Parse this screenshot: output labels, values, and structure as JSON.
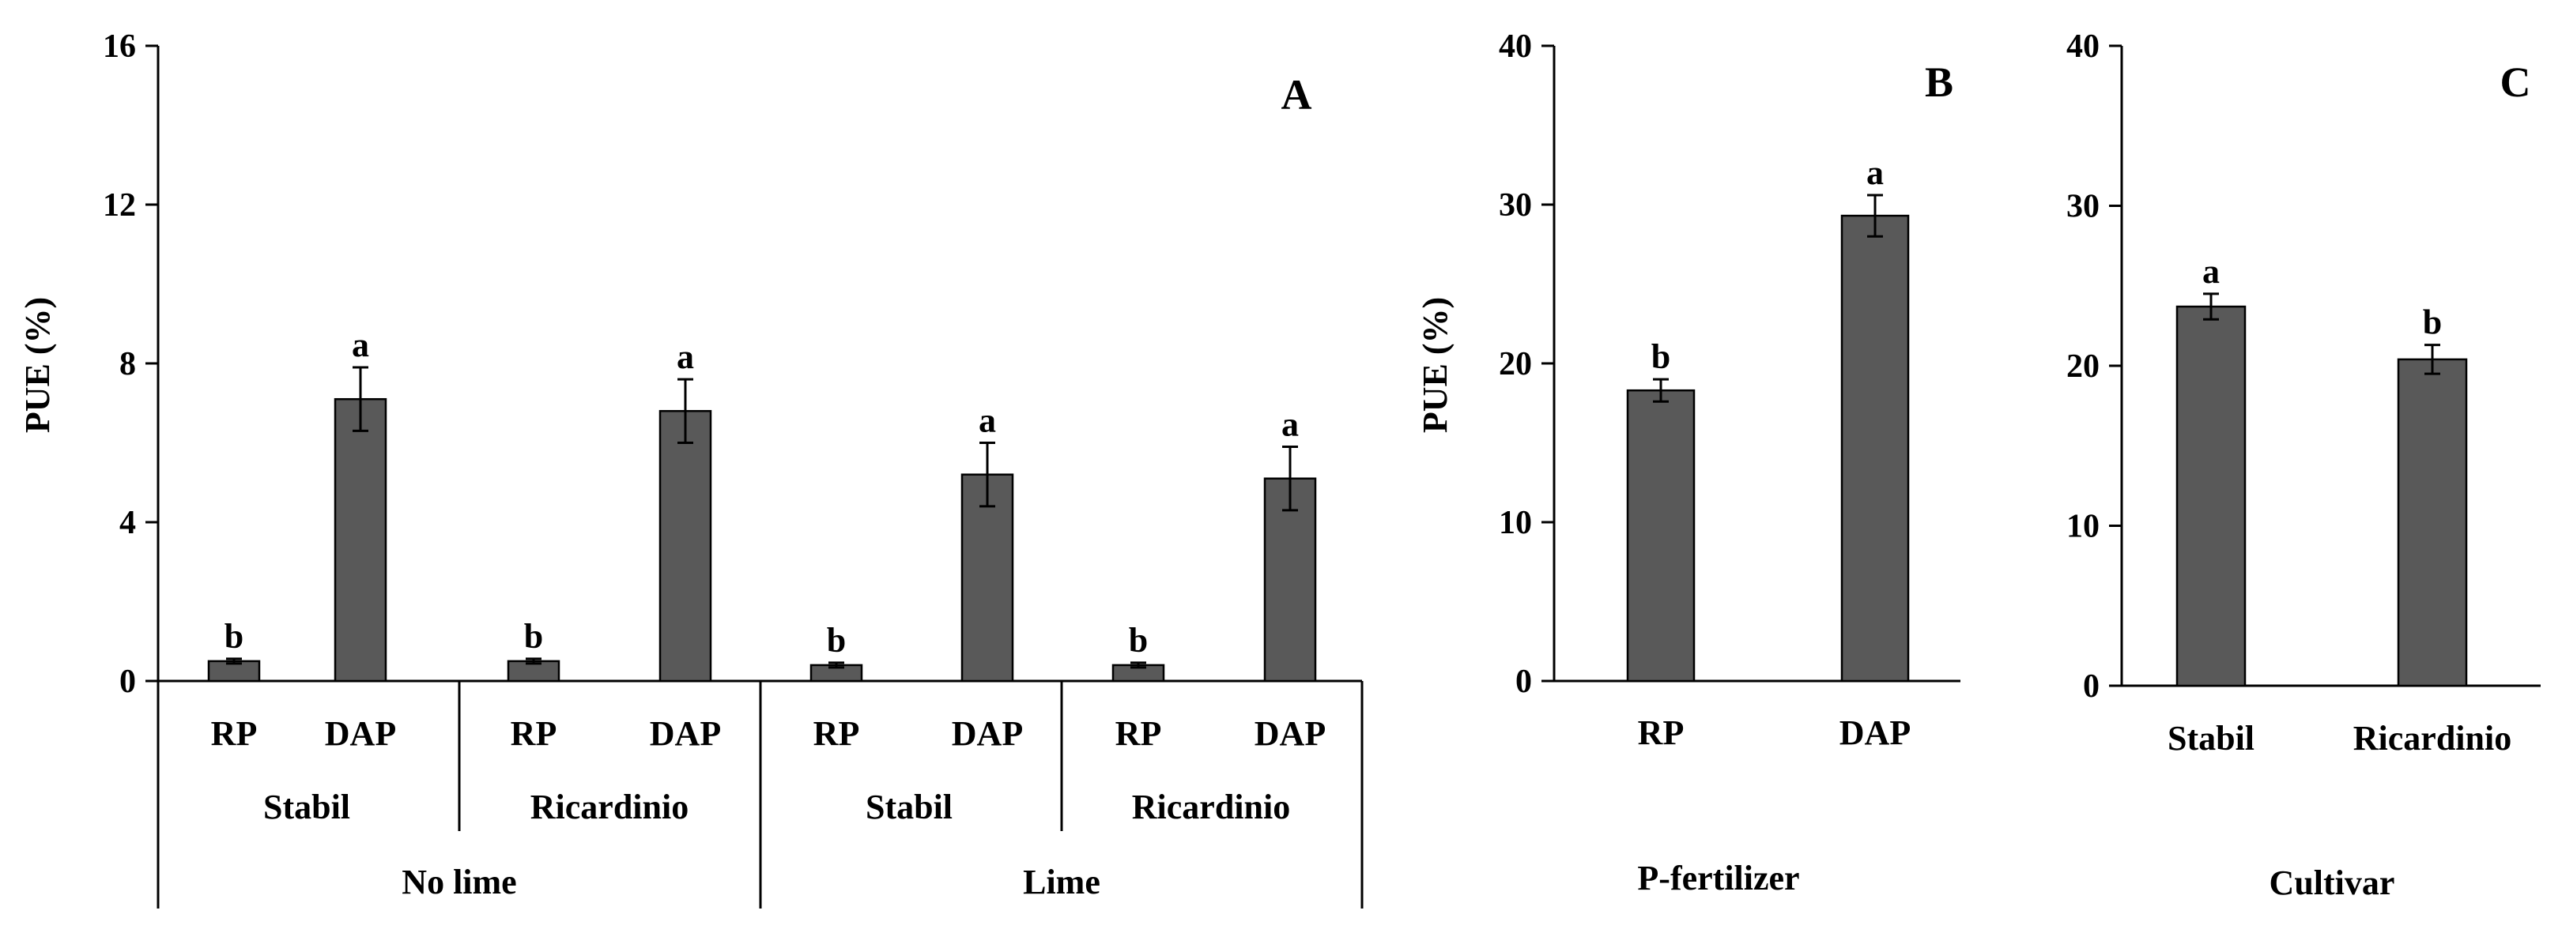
{
  "colors": {
    "bar": "#595959",
    "bar_stroke": "#000000",
    "axis": "#000000"
  },
  "chart_data": [
    {
      "panel_letter": "A",
      "type": "bar",
      "ylabel": "PUE (%)",
      "ylim": [
        0,
        16
      ],
      "yticks": [
        "0",
        "4",
        "8",
        "12",
        "16"
      ],
      "categories": [
        "RP",
        "DAP",
        "RP",
        "DAP",
        "RP",
        "DAP",
        "RP",
        "DAP"
      ],
      "values": [
        0.5,
        7.1,
        0.5,
        6.8,
        0.4,
        5.2,
        0.4,
        5.1
      ],
      "errors": [
        0.06,
        0.8,
        0.06,
        0.8,
        0.06,
        0.8,
        0.06,
        0.8
      ],
      "letters": [
        "b",
        "a",
        "b",
        "a",
        "b",
        "a",
        "b",
        "a"
      ],
      "group_level1": [
        "Stabil",
        "Ricardinio",
        "Stabil",
        "Ricardinio"
      ],
      "group_level2": [
        "No lime",
        "Lime"
      ]
    },
    {
      "panel_letter": "B",
      "type": "bar",
      "ylabel": "PUE (%)",
      "ylim": [
        0,
        40
      ],
      "yticks": [
        "0",
        "10",
        "20",
        "30",
        "40"
      ],
      "categories": [
        "RP",
        "DAP"
      ],
      "values": [
        18.3,
        29.3
      ],
      "errors": [
        0.7,
        1.3
      ],
      "letters": [
        "b",
        "a"
      ],
      "xlabel": "P-fertilizer"
    },
    {
      "panel_letter": "C",
      "type": "bar",
      "ylabel": "",
      "ylim": [
        0,
        40
      ],
      "yticks": [
        "0",
        "10",
        "20",
        "30",
        "40"
      ],
      "categories": [
        "Stabil",
        "Ricardinio"
      ],
      "values": [
        23.7,
        20.4
      ],
      "errors": [
        0.8,
        0.9
      ],
      "letters": [
        "a",
        "b"
      ],
      "xlabel": "Cultivar"
    }
  ]
}
